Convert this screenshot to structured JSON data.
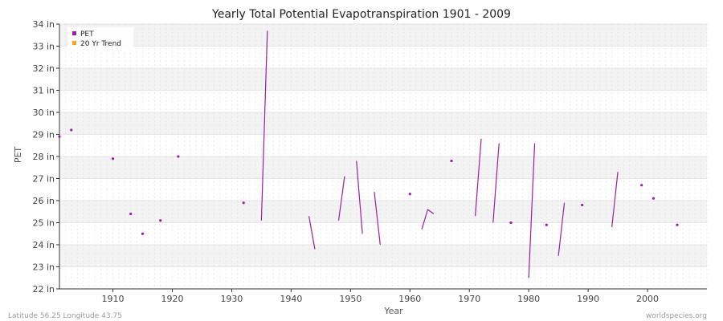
{
  "chart_data": {
    "type": "line",
    "title": "Yearly Total Potential Evapotranspiration 1901 - 2009",
    "xlabel": "Year",
    "ylabel": "PET",
    "xlim": [
      1901,
      2010
    ],
    "ylim": [
      22,
      34
    ],
    "x_ticks": [
      1910,
      1920,
      1930,
      1940,
      1950,
      1960,
      1970,
      1980,
      1990,
      2000
    ],
    "y_ticks": [
      {
        "value": 22,
        "label": "22 in"
      },
      {
        "value": 23,
        "label": "23 in"
      },
      {
        "value": 24,
        "label": "24 in"
      },
      {
        "value": 25,
        "label": "25 in"
      },
      {
        "value": 26,
        "label": "26 in"
      },
      {
        "value": 27,
        "label": "27 in"
      },
      {
        "value": 28,
        "label": "28 in"
      },
      {
        "value": 29,
        "label": "29 in"
      },
      {
        "value": 30,
        "label": "30 in"
      },
      {
        "value": 31,
        "label": "31 in"
      },
      {
        "value": 32,
        "label": "32 in"
      },
      {
        "value": 33,
        "label": "33 in"
      },
      {
        "value": 34,
        "label": "34 in"
      }
    ],
    "grid": true,
    "legend_position": "top-left",
    "series": [
      {
        "name": "PET",
        "color": "#9b1fa6",
        "points": [
          [
            1901,
            28.9
          ],
          [
            1903,
            29.2
          ],
          [
            1910,
            27.9
          ],
          [
            1913,
            25.4
          ],
          [
            1915,
            24.5
          ],
          [
            1918,
            25.1
          ],
          [
            1921,
            28.0
          ],
          [
            1932,
            25.9
          ],
          [
            1935,
            25.1
          ],
          [
            1936,
            33.7
          ],
          [
            1943,
            25.3
          ],
          [
            1944,
            23.8
          ],
          [
            1948,
            25.1
          ],
          [
            1949,
            27.1
          ],
          [
            1951,
            27.8
          ],
          [
            1952,
            24.5
          ],
          [
            1954,
            26.4
          ],
          [
            1955,
            24.0
          ],
          [
            1960,
            26.3
          ],
          [
            1962,
            24.7
          ],
          [
            1963,
            25.6
          ],
          [
            1964,
            25.4
          ],
          [
            1967,
            27.8
          ],
          [
            1971,
            25.3
          ],
          [
            1972,
            28.8
          ],
          [
            1974,
            25.0
          ],
          [
            1975,
            28.6
          ],
          [
            1977,
            25.0
          ],
          [
            1980,
            22.5
          ],
          [
            1981,
            28.6
          ],
          [
            1983,
            24.9
          ],
          [
            1985,
            23.5
          ],
          [
            1986,
            25.9
          ],
          [
            1989,
            25.8
          ],
          [
            1994,
            24.8
          ],
          [
            1995,
            27.3
          ],
          [
            1999,
            26.7
          ],
          [
            2001,
            26.1
          ],
          [
            2005,
            24.9
          ]
        ]
      },
      {
        "name": "20 Yr Trend",
        "color": "#f5a623",
        "points": []
      }
    ]
  },
  "footer": {
    "left": "Latitude 56.25 Longitude 43.75",
    "right": "worldspecies.org"
  }
}
